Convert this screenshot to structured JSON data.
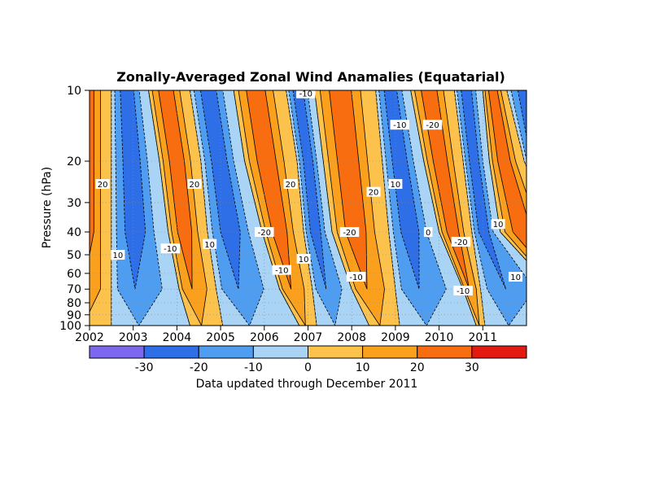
{
  "chart_data": {
    "type": "heatmap",
    "title": "Zonally-Averaged Zonal Wind Anamalies (Equatarial)",
    "ylabel": "Pressure (hPa)",
    "xlabel": "",
    "x_ticks": [
      "2002",
      "2003",
      "2004",
      "2005",
      "2006",
      "2007",
      "2008",
      "2009",
      "2010",
      "2011"
    ],
    "y_ticks": [
      "10",
      "20",
      "30",
      "40",
      "50",
      "60",
      "70",
      "80",
      "90",
      "100"
    ],
    "y_scale": "log",
    "ylim": [
      100,
      10
    ],
    "xlim": [
      2002,
      2012
    ],
    "grid": true,
    "colorbar": {
      "labels": [
        "-30",
        "-20",
        "-10",
        "0",
        "10",
        "20",
        "30"
      ],
      "colors": [
        "#7b68ee",
        "#2e6ee6",
        "#4f9df0",
        "#a9d4f6",
        "#fdc24c",
        "#fba01c",
        "#f86d10",
        "#e21a10"
      ]
    },
    "contour_labels": [
      {
        "text": "20",
        "x": 2002.3,
        "p": 25
      },
      {
        "text": "10",
        "x": 2002.65,
        "p": 50
      },
      {
        "text": "-10",
        "x": 2003.85,
        "p": 47
      },
      {
        "text": "20",
        "x": 2004.4,
        "p": 25
      },
      {
        "text": "10",
        "x": 2004.75,
        "p": 45
      },
      {
        "text": "-20",
        "x": 2006.0,
        "p": 40
      },
      {
        "text": "-10",
        "x": 2006.4,
        "p": 58
      },
      {
        "text": "20",
        "x": 2006.6,
        "p": 25
      },
      {
        "text": "10",
        "x": 2006.9,
        "p": 52
      },
      {
        "text": "-10",
        "x": 2006.95,
        "p": 10.3
      },
      {
        "text": "-20",
        "x": 2007.95,
        "p": 40
      },
      {
        "text": "-10",
        "x": 2008.1,
        "p": 62
      },
      {
        "text": "20",
        "x": 2008.5,
        "p": 27
      },
      {
        "text": "10",
        "x": 2009.0,
        "p": 25
      },
      {
        "text": "-10",
        "x": 2009.1,
        "p": 14
      },
      {
        "text": "-20",
        "x": 2009.85,
        "p": 14
      },
      {
        "text": "0",
        "x": 2009.75,
        "p": 40
      },
      {
        "text": "-20",
        "x": 2010.5,
        "p": 44
      },
      {
        "text": "-10",
        "x": 2010.55,
        "p": 71
      },
      {
        "text": "10",
        "x": 2011.35,
        "p": 37
      },
      {
        "text": "10",
        "x": 2011.75,
        "p": 62
      }
    ],
    "regime_boundaries": [
      {
        "p": 10,
        "x": [
          2002.5,
          2003.35,
          2004.3,
          2005.3,
          2006.5,
          2007.15,
          2008.55,
          2009.35,
          2010.35,
          2011.0,
          2011.55
        ]
      },
      {
        "p": 20,
        "x": [
          2002.5,
          2003.6,
          2004.55,
          2005.55,
          2006.75,
          2007.35,
          2008.7,
          2009.65,
          2010.55,
          2011.15,
          2011.95
        ]
      },
      {
        "p": 40,
        "x": [
          2002.5,
          2003.8,
          2004.7,
          2005.95,
          2006.9,
          2007.55,
          2008.85,
          2010.0,
          2010.75,
          2011.4
        ]
      },
      {
        "p": 70,
        "x": [
          2002.5,
          2004.05,
          2004.9,
          2006.35,
          2007.1,
          2008.0,
          2009.0,
          2010.55,
          2010.95
        ]
      },
      {
        "p": 100,
        "x": [
          2002.5,
          2004.3,
          2005.05,
          2006.8,
          2007.2,
          2008.4,
          2009.1,
          2010.85,
          2011.05
        ]
      }
    ],
    "regime_signs": [
      "+",
      "-",
      "+",
      "-",
      "+",
      "-",
      "+",
      "-",
      "+",
      "-",
      "+",
      "-"
    ],
    "annotation": "Data updated through December 2011"
  }
}
